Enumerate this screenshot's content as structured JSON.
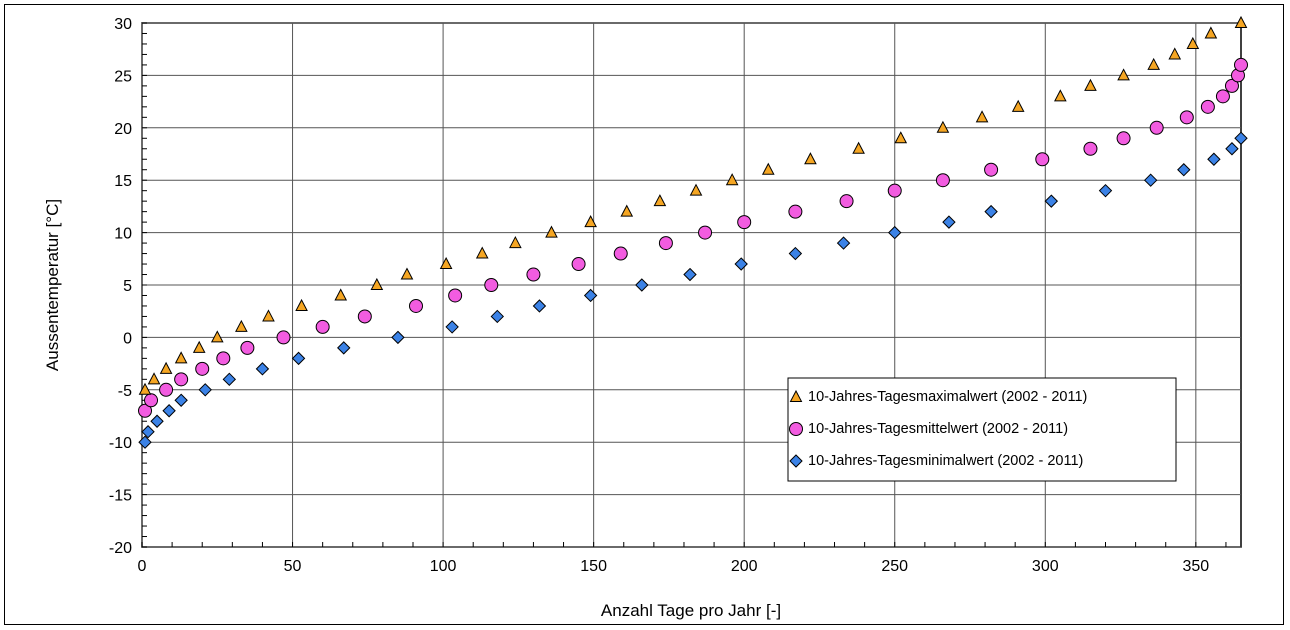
{
  "chart_data": {
    "type": "scatter",
    "xlabel": "Anzahl Tage pro Jahr [-]",
    "ylabel": "Aussentemperatur [°C]",
    "xlim": [
      0,
      365
    ],
    "ylim": [
      -20,
      30
    ],
    "xticks": [
      0,
      50,
      100,
      150,
      200,
      250,
      300,
      350
    ],
    "yticks": [
      -20,
      -15,
      -10,
      -5,
      0,
      5,
      10,
      15,
      20,
      25,
      30
    ],
    "grid": true,
    "legend_position": "bottom-right",
    "series": [
      {
        "name": "10-Jahres-Tagesmaximalwert (2002 - 2011)",
        "marker": "triangle",
        "color": "#F5A623",
        "x": [
          1,
          4,
          8,
          13,
          19,
          25,
          33,
          42,
          53,
          66,
          78,
          88,
          101,
          113,
          124,
          136,
          149,
          161,
          172,
          184,
          196,
          208,
          222,
          238,
          252,
          266,
          279,
          291,
          305,
          315,
          326,
          336,
          343,
          349,
          355,
          365
        ],
        "y": [
          -5,
          -4,
          -3,
          -2,
          -1,
          0,
          1,
          2,
          3,
          4,
          5,
          6,
          7,
          8,
          9,
          10,
          11,
          12,
          13,
          14,
          15,
          16,
          17,
          18,
          19,
          20,
          21,
          22,
          23,
          24,
          25,
          26,
          27,
          28,
          29,
          30
        ]
      },
      {
        "name": "10-Jahres-Tagesmittelwert (2002 - 2011)",
        "marker": "circle",
        "color": "#F25CE0",
        "x": [
          1,
          3,
          8,
          13,
          20,
          27,
          35,
          47,
          60,
          74,
          91,
          104,
          116,
          130,
          145,
          159,
          174,
          187,
          200,
          217,
          234,
          250,
          266,
          282,
          299,
          315,
          326,
          337,
          347,
          354,
          359,
          362,
          364,
          365
        ],
        "y": [
          -7,
          -6,
          -5,
          -4,
          -3,
          -2,
          -1,
          0,
          1,
          2,
          3,
          4,
          5,
          6,
          7,
          8,
          9,
          10,
          11,
          12,
          13,
          14,
          15,
          16,
          17,
          18,
          19,
          20,
          21,
          22,
          23,
          24,
          25,
          26
        ]
      },
      {
        "name": "10-Jahres-Tagesminimalwert (2002 - 2011)",
        "marker": "diamond",
        "color": "#3B82E6",
        "x": [
          1,
          2,
          5,
          9,
          13,
          21,
          29,
          40,
          52,
          67,
          85,
          103,
          118,
          132,
          149,
          166,
          182,
          199,
          217,
          233,
          250,
          268,
          282,
          302,
          320,
          335,
          346,
          356,
          362,
          365
        ],
        "y": [
          -10,
          -9,
          -8,
          -7,
          -6,
          -5,
          -4,
          -3,
          -2,
          -1,
          0,
          1,
          2,
          3,
          4,
          5,
          6,
          7,
          8,
          9,
          10,
          11,
          12,
          13,
          14,
          15,
          16,
          17,
          18,
          19
        ]
      }
    ]
  }
}
